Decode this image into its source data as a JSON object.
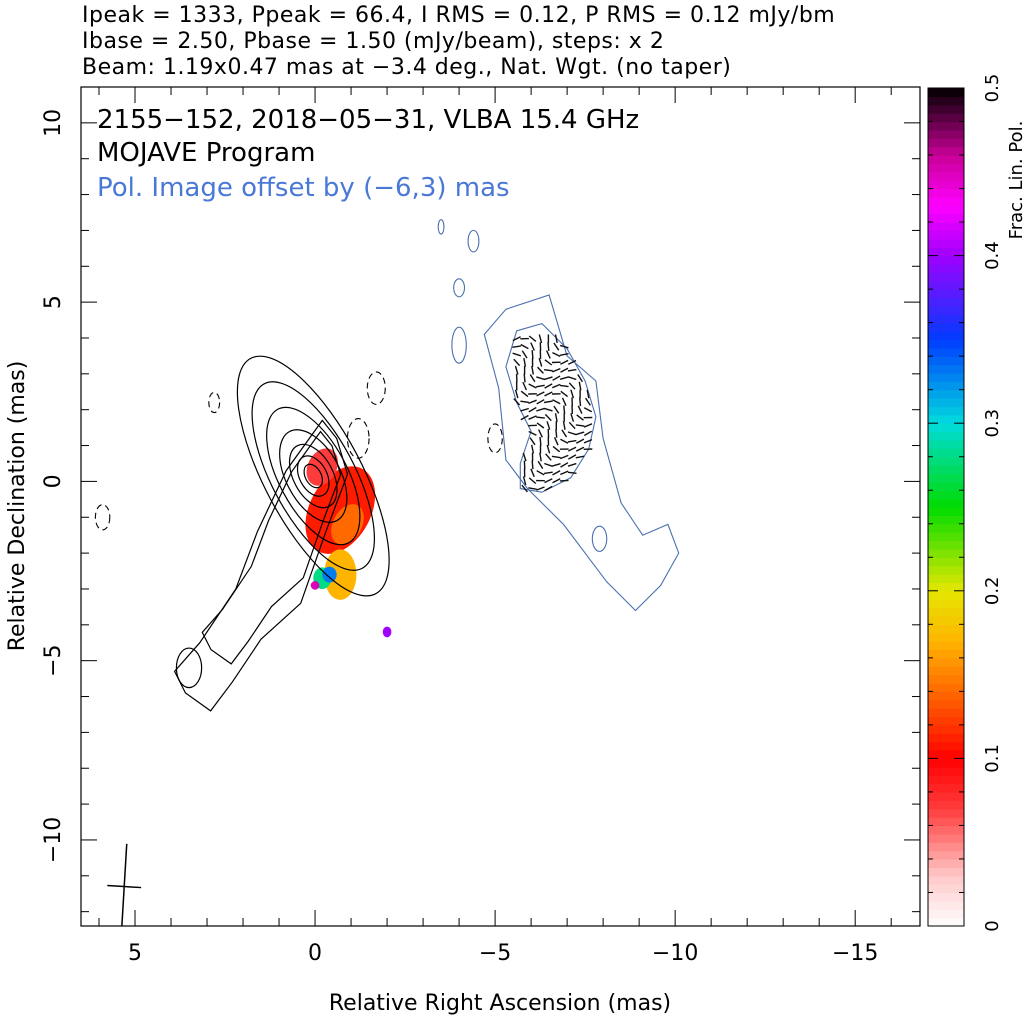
{
  "header": {
    "line1": "Ipeak = 1333, Ppeak = 66.4, I RMS = 0.12, P RMS = 0.12 mJy/bm",
    "line2": "Ibase = 2.50, Pbase = 1.50 (mJy/beam), steps: x 2",
    "line3": "Beam: 1.19x0.47 mas at −3.4 deg., Nat. Wgt. (no taper)"
  },
  "annotations": {
    "source": "2155−152, 2018−05−31, VLBA 15.4 GHz",
    "program": "MOJAVE Program",
    "offset": "Pol. Image offset by (−6,3) mas"
  },
  "colors": {
    "offset_text": "#4a78d6",
    "contour": "#000000",
    "pol_contour": "#4a6fb0",
    "tick_vector": "#111111"
  },
  "chart_data": {
    "type": "heatmap",
    "xlabel": "Relative Right Ascension (mas)",
    "ylabel": "Relative Declination (mas)",
    "xlim": [
      6.5,
      -16.8
    ],
    "ylim": [
      -12.4,
      11
    ],
    "x_ticks": [
      "5",
      "0",
      "−5",
      "−10",
      "−15"
    ],
    "x_tick_values": [
      5,
      0,
      -5,
      -10,
      -15
    ],
    "y_ticks": [
      "10",
      "5",
      "0",
      "−5",
      "−10"
    ],
    "y_tick_values": [
      10,
      5,
      0,
      -5,
      -10
    ],
    "colorbar": {
      "label": "Frac. Lin. Pol.",
      "range": [
        0,
        0.5
      ],
      "ticks": [
        "0",
        "0.1",
        "0.2",
        "0.3",
        "0.4",
        "0.5"
      ],
      "tick_values": [
        0,
        0.1,
        0.2,
        0.3,
        0.4,
        0.5
      ]
    },
    "beam": {
      "major_mas": 1.19,
      "minor_mas": 0.47,
      "pa_deg": -3.4,
      "center": [
        5.3,
        -11.3
      ]
    },
    "stokes_i_contours": {
      "center": [
        0.05,
        0.15
      ],
      "pa_deg": 28,
      "levels": [
        {
          "a": 0.35,
          "b": 0.22
        },
        {
          "a": 0.6,
          "b": 0.38
        },
        {
          "a": 0.95,
          "b": 0.55
        },
        {
          "a": 1.4,
          "b": 0.75
        },
        {
          "a": 2.1,
          "b": 0.95
        },
        {
          "a": 2.9,
          "b": 1.15
        },
        {
          "a": 3.7,
          "b": 1.35
        }
      ],
      "jet_outline": [
        [
          -0.2,
          1.7
        ],
        [
          0.8,
          0.3
        ],
        [
          1.6,
          -1.4
        ],
        [
          2.2,
          -3.0
        ],
        [
          3.2,
          -4.5
        ],
        [
          3.9,
          -5.3
        ],
        [
          3.6,
          -5.9
        ],
        [
          2.9,
          -6.4
        ],
        [
          2.3,
          -5.6
        ],
        [
          1.5,
          -4.4
        ],
        [
          0.4,
          -3.4
        ],
        [
          -0.3,
          -1.4
        ],
        [
          -0.9,
          0.2
        ],
        [
          -0.6,
          1.2
        ]
      ],
      "knot": {
        "center": [
          3.5,
          -5.2
        ],
        "a": 0.55,
        "b": 0.35
      },
      "negative": [
        {
          "center": [
            -1.7,
            2.6
          ],
          "a": 0.25,
          "b": 0.45
        },
        {
          "center": [
            -1.2,
            1.2
          ],
          "a": 0.3,
          "b": 0.55
        },
        {
          "center": [
            -5.0,
            1.2
          ],
          "a": 0.2,
          "b": 0.4
        },
        {
          "center": [
            5.9,
            -1.0
          ],
          "a": 0.2,
          "b": 0.35
        },
        {
          "center": [
            2.8,
            2.2
          ],
          "a": 0.15,
          "b": 0.28
        }
      ]
    },
    "frac_pol_regions": [
      {
        "center": [
          -0.7,
          -0.8
        ],
        "a": 1.3,
        "b": 0.85,
        "pa_deg": 28,
        "value": 0.11
      },
      {
        "center": [
          -0.2,
          0.4
        ],
        "a": 0.55,
        "b": 0.4,
        "pa_deg": 28,
        "value": 0.07
      },
      {
        "center": [
          -0.9,
          -1.2
        ],
        "a": 0.6,
        "b": 0.4,
        "pa_deg": 28,
        "value": 0.14
      },
      {
        "center": [
          -0.7,
          -2.6
        ],
        "a": 0.7,
        "b": 0.45,
        "pa_deg": 0,
        "value": 0.17
      },
      {
        "center": [
          -0.2,
          -2.7
        ],
        "a": 0.3,
        "b": 0.25,
        "pa_deg": 0,
        "value": 0.28
      },
      {
        "center": [
          -0.4,
          -2.6
        ],
        "a": 0.22,
        "b": 0.2,
        "pa_deg": 0,
        "value": 0.33
      },
      {
        "center": [
          -2.0,
          -4.2
        ],
        "a": 0.15,
        "b": 0.12,
        "pa_deg": 0,
        "value": 0.4
      },
      {
        "center": [
          -0.0,
          -2.9
        ],
        "a": 0.12,
        "b": 0.12,
        "pa_deg": 0,
        "value": 0.45
      }
    ],
    "pol_contours": {
      "outer": [
        [
          -5.3,
          4.8
        ],
        [
          -6.5,
          5.2
        ],
        [
          -7.0,
          3.5
        ],
        [
          -7.8,
          2.8
        ],
        [
          -8.0,
          1.2
        ],
        [
          -8.5,
          -0.6
        ],
        [
          -9.1,
          -1.5
        ],
        [
          -9.8,
          -1.2
        ],
        [
          -10.1,
          -2.0
        ],
        [
          -9.6,
          -2.9
        ],
        [
          -8.9,
          -3.6
        ],
        [
          -8.1,
          -2.8
        ],
        [
          -7.5,
          -2.0
        ],
        [
          -6.9,
          -1.2
        ],
        [
          -5.9,
          -0.2
        ],
        [
          -5.3,
          0.6
        ],
        [
          -5.1,
          2.6
        ],
        [
          -4.7,
          4.1
        ]
      ],
      "inner": [
        [
          -5.6,
          4.2
        ],
        [
          -6.3,
          4.4
        ],
        [
          -7.0,
          3.7
        ],
        [
          -7.5,
          2.8
        ],
        [
          -7.8,
          1.8
        ],
        [
          -7.6,
          0.9
        ],
        [
          -7.1,
          0.1
        ],
        [
          -6.3,
          -0.3
        ],
        [
          -5.7,
          -0.2
        ],
        [
          -5.7,
          0.5
        ],
        [
          -6.0,
          1.4
        ],
        [
          -5.6,
          2.2
        ],
        [
          -5.3,
          3.2
        ]
      ],
      "islands": [
        {
          "center": [
            -4.4,
            6.7
          ],
          "a": 0.15,
          "b": 0.3
        },
        {
          "center": [
            -4.0,
            5.4
          ],
          "a": 0.15,
          "b": 0.25
        },
        {
          "center": [
            -3.5,
            7.1
          ],
          "a": 0.08,
          "b": 0.2
        },
        {
          "center": [
            -4.0,
            3.8
          ],
          "a": 0.2,
          "b": 0.5
        },
        {
          "center": [
            -7.9,
            -1.6
          ],
          "a": 0.2,
          "b": 0.35
        }
      ]
    },
    "evpa_region": {
      "x": [
        -5.6,
        -7.7
      ],
      "y": [
        -0.2,
        4.2
      ],
      "spacing": 0.22
    }
  }
}
